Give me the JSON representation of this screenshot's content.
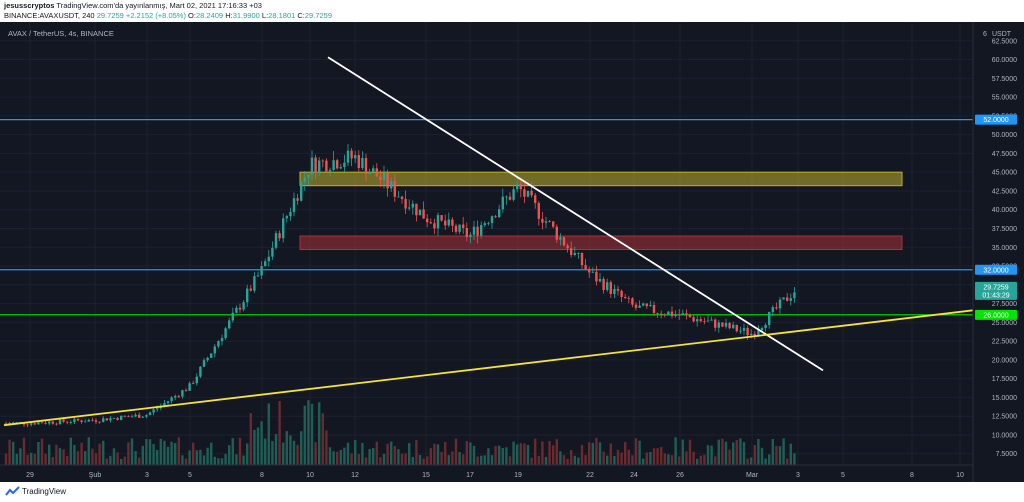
{
  "header": {
    "author": "jesusscryptos",
    "published": "TradingView.com'da yayınlanmış, Mart 02, 2021 17:16:33 +03",
    "symbol_line": "BINANCE:AVAXUSDT, 240",
    "price": "29.7259",
    "change": "+2.2152 (+8.05%)",
    "o_label": "O:",
    "o_value": "28.2409",
    "h_label": "H:",
    "h_value": "31.9900",
    "l_label": "L:",
    "l_value": "28.1801",
    "c_label": "C:",
    "c_value": "29.7259"
  },
  "footer": {
    "brand": "TradingView"
  },
  "chart_data": {
    "type": "candlestick",
    "title": "AVAX / TetherUS, 4s, BINANCE",
    "currency": "USDT",
    "currency_badge": "6",
    "y_range": [
      6.0,
      65.0
    ],
    "y_ticks": [
      "62.5000",
      "60.0000",
      "57.5000",
      "55.0000",
      "52.5000",
      "50.0000",
      "47.5000",
      "45.0000",
      "42.5000",
      "40.0000",
      "37.5000",
      "35.0000",
      "32.5000",
      "30.0000",
      "27.5000",
      "25.0000",
      "22.5000",
      "20.0000",
      "17.5000",
      "15.0000",
      "12.5000",
      "10.0000",
      "7.5000"
    ],
    "x_ticks": [
      "29",
      "Şub",
      "3",
      "5",
      "8",
      "10",
      "12",
      "15",
      "17",
      "19",
      "22",
      "24",
      "26",
      "Mar",
      "3",
      "5",
      "8",
      "10"
    ],
    "price_labels": [
      {
        "value": 52.0,
        "text": "52.0000",
        "color": "#2196f3"
      },
      {
        "value": 32.0,
        "text": "32.0000",
        "color": "#2196f3"
      },
      {
        "value": 29.7259,
        "text": "29.7259",
        "sub": "01:43:29",
        "color": "#26a69a"
      },
      {
        "value": 26.0,
        "text": "26.0000",
        "color": "#00e600"
      }
    ],
    "horizontal_lines": [
      {
        "value": 52.0,
        "color": "#2196f3"
      },
      {
        "value": 32.0,
        "color": "#2196f3"
      },
      {
        "value": 26.0,
        "color": "#00e600"
      }
    ],
    "zones": [
      {
        "from": "10",
        "to": "8",
        "top": 45.0,
        "bottom": 43.2,
        "color": "#bdb12e"
      },
      {
        "from": "10",
        "to": "8",
        "top": 36.5,
        "bottom": 34.7,
        "color": "#a8323b"
      }
    ],
    "trendlines": [
      {
        "from": [
          "10",
          60.3
        ],
        "to": [
          "5",
          18.6
        ],
        "color": "#ffffff"
      },
      {
        "from": [
          "29",
          11.3
        ],
        "to": [
          "10",
          26.6
        ],
        "color": "#f5e23b"
      }
    ],
    "series_anchors": [
      [
        "29",
        11.6
      ],
      [
        "Şub",
        12.0
      ],
      [
        "3",
        12.7
      ],
      [
        "5",
        16.5
      ],
      [
        "8",
        32.0
      ],
      [
        "10",
        46.0
      ],
      [
        "12",
        47.0
      ],
      [
        "15",
        39.0
      ],
      [
        "17",
        36.5
      ],
      [
        "19",
        43.0
      ],
      [
        "22",
        31.5
      ],
      [
        "24",
        27.0
      ],
      [
        "26",
        26.0
      ],
      [
        "Mar",
        23.5
      ],
      [
        "3",
        29.7259
      ]
    ],
    "up_color": "#26a69a",
    "down_color": "#ef5350",
    "background": "#131722",
    "grid": true
  }
}
